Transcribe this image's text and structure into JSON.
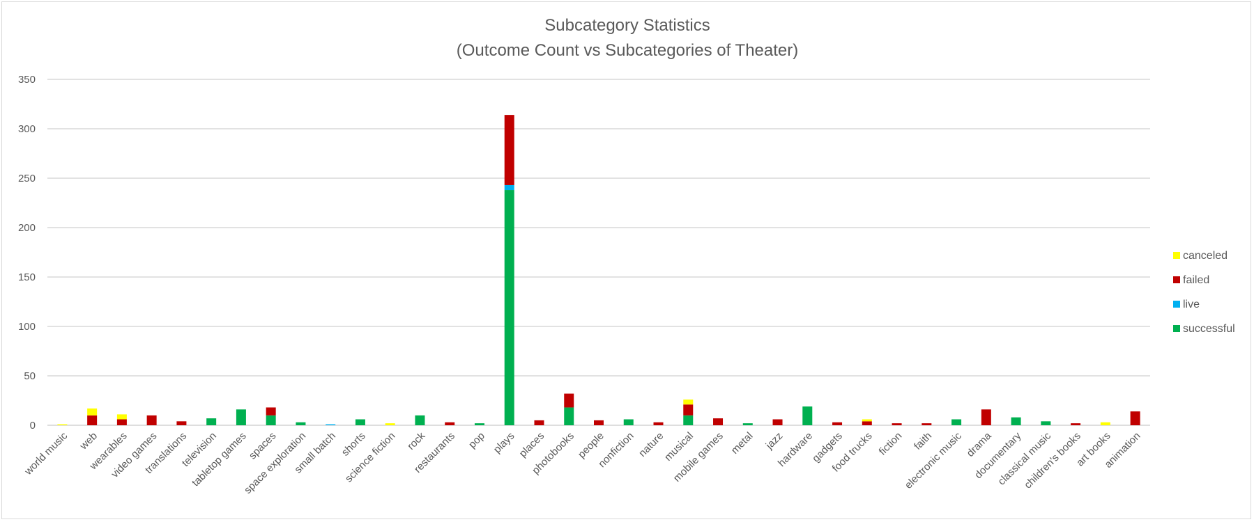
{
  "chart_data": {
    "type": "bar",
    "stacked": true,
    "title": "Subcategory Statistics",
    "subtitle": "(Outcome Count vs Subcategories of Theater)",
    "xlabel": "",
    "ylabel": "",
    "ylim": [
      0,
      350
    ],
    "yticks": [
      "0",
      "50",
      "100",
      "150",
      "200",
      "250",
      "300",
      "350"
    ],
    "grid": true,
    "legend_position": "right",
    "categories": [
      "world music",
      "web",
      "wearables",
      "video games",
      "translations",
      "television",
      "tabletop games",
      "spaces",
      "space exploration",
      "small batch",
      "shorts",
      "science fiction",
      "rock",
      "restaurants",
      "pop",
      "plays",
      "places",
      "photobooks",
      "people",
      "nonfiction",
      "nature",
      "musical",
      "mobile games",
      "metal",
      "jazz",
      "hardware",
      "gadgets",
      "food trucks",
      "fiction",
      "faith",
      "electronic music",
      "drama",
      "documentary",
      "classical music",
      "children's books",
      "art books",
      "animation"
    ],
    "series": [
      {
        "name": "successful",
        "color": "#00B050",
        "values": [
          0,
          0,
          0,
          0,
          0,
          7,
          16,
          10,
          3,
          0,
          6,
          0,
          10,
          0,
          2,
          238,
          0,
          18,
          0,
          6,
          0,
          10,
          0,
          2,
          0,
          19,
          0,
          0,
          0,
          0,
          6,
          0,
          8,
          4,
          0,
          0,
          0
        ]
      },
      {
        "name": "live",
        "color": "#00B0F0",
        "values": [
          0,
          0,
          0,
          0,
          0,
          0,
          0,
          0,
          0,
          1,
          0,
          0,
          0,
          0,
          0,
          5,
          0,
          0,
          0,
          0,
          0,
          0,
          0,
          0,
          0,
          0,
          0,
          0,
          0,
          0,
          0,
          0,
          0,
          0,
          0,
          0,
          0
        ]
      },
      {
        "name": "failed",
        "color": "#C00000",
        "values": [
          0,
          10,
          6,
          10,
          4,
          0,
          0,
          8,
          0,
          0,
          0,
          0,
          0,
          3,
          0,
          71,
          5,
          14,
          5,
          0,
          3,
          11,
          7,
          0,
          6,
          0,
          3,
          4,
          2,
          2,
          0,
          16,
          0,
          0,
          2,
          0,
          14
        ]
      },
      {
        "name": "canceled",
        "color": "#FFFF00",
        "values": [
          1,
          7,
          5,
          0,
          0,
          0,
          0,
          0,
          0,
          0,
          0,
          2,
          0,
          0,
          0,
          0,
          0,
          0,
          0,
          0,
          0,
          5,
          0,
          0,
          0,
          0,
          0,
          2,
          0,
          0,
          0,
          0,
          0,
          0,
          0,
          3,
          0
        ]
      }
    ],
    "legend_order": [
      "canceled",
      "failed",
      "live",
      "successful"
    ]
  }
}
